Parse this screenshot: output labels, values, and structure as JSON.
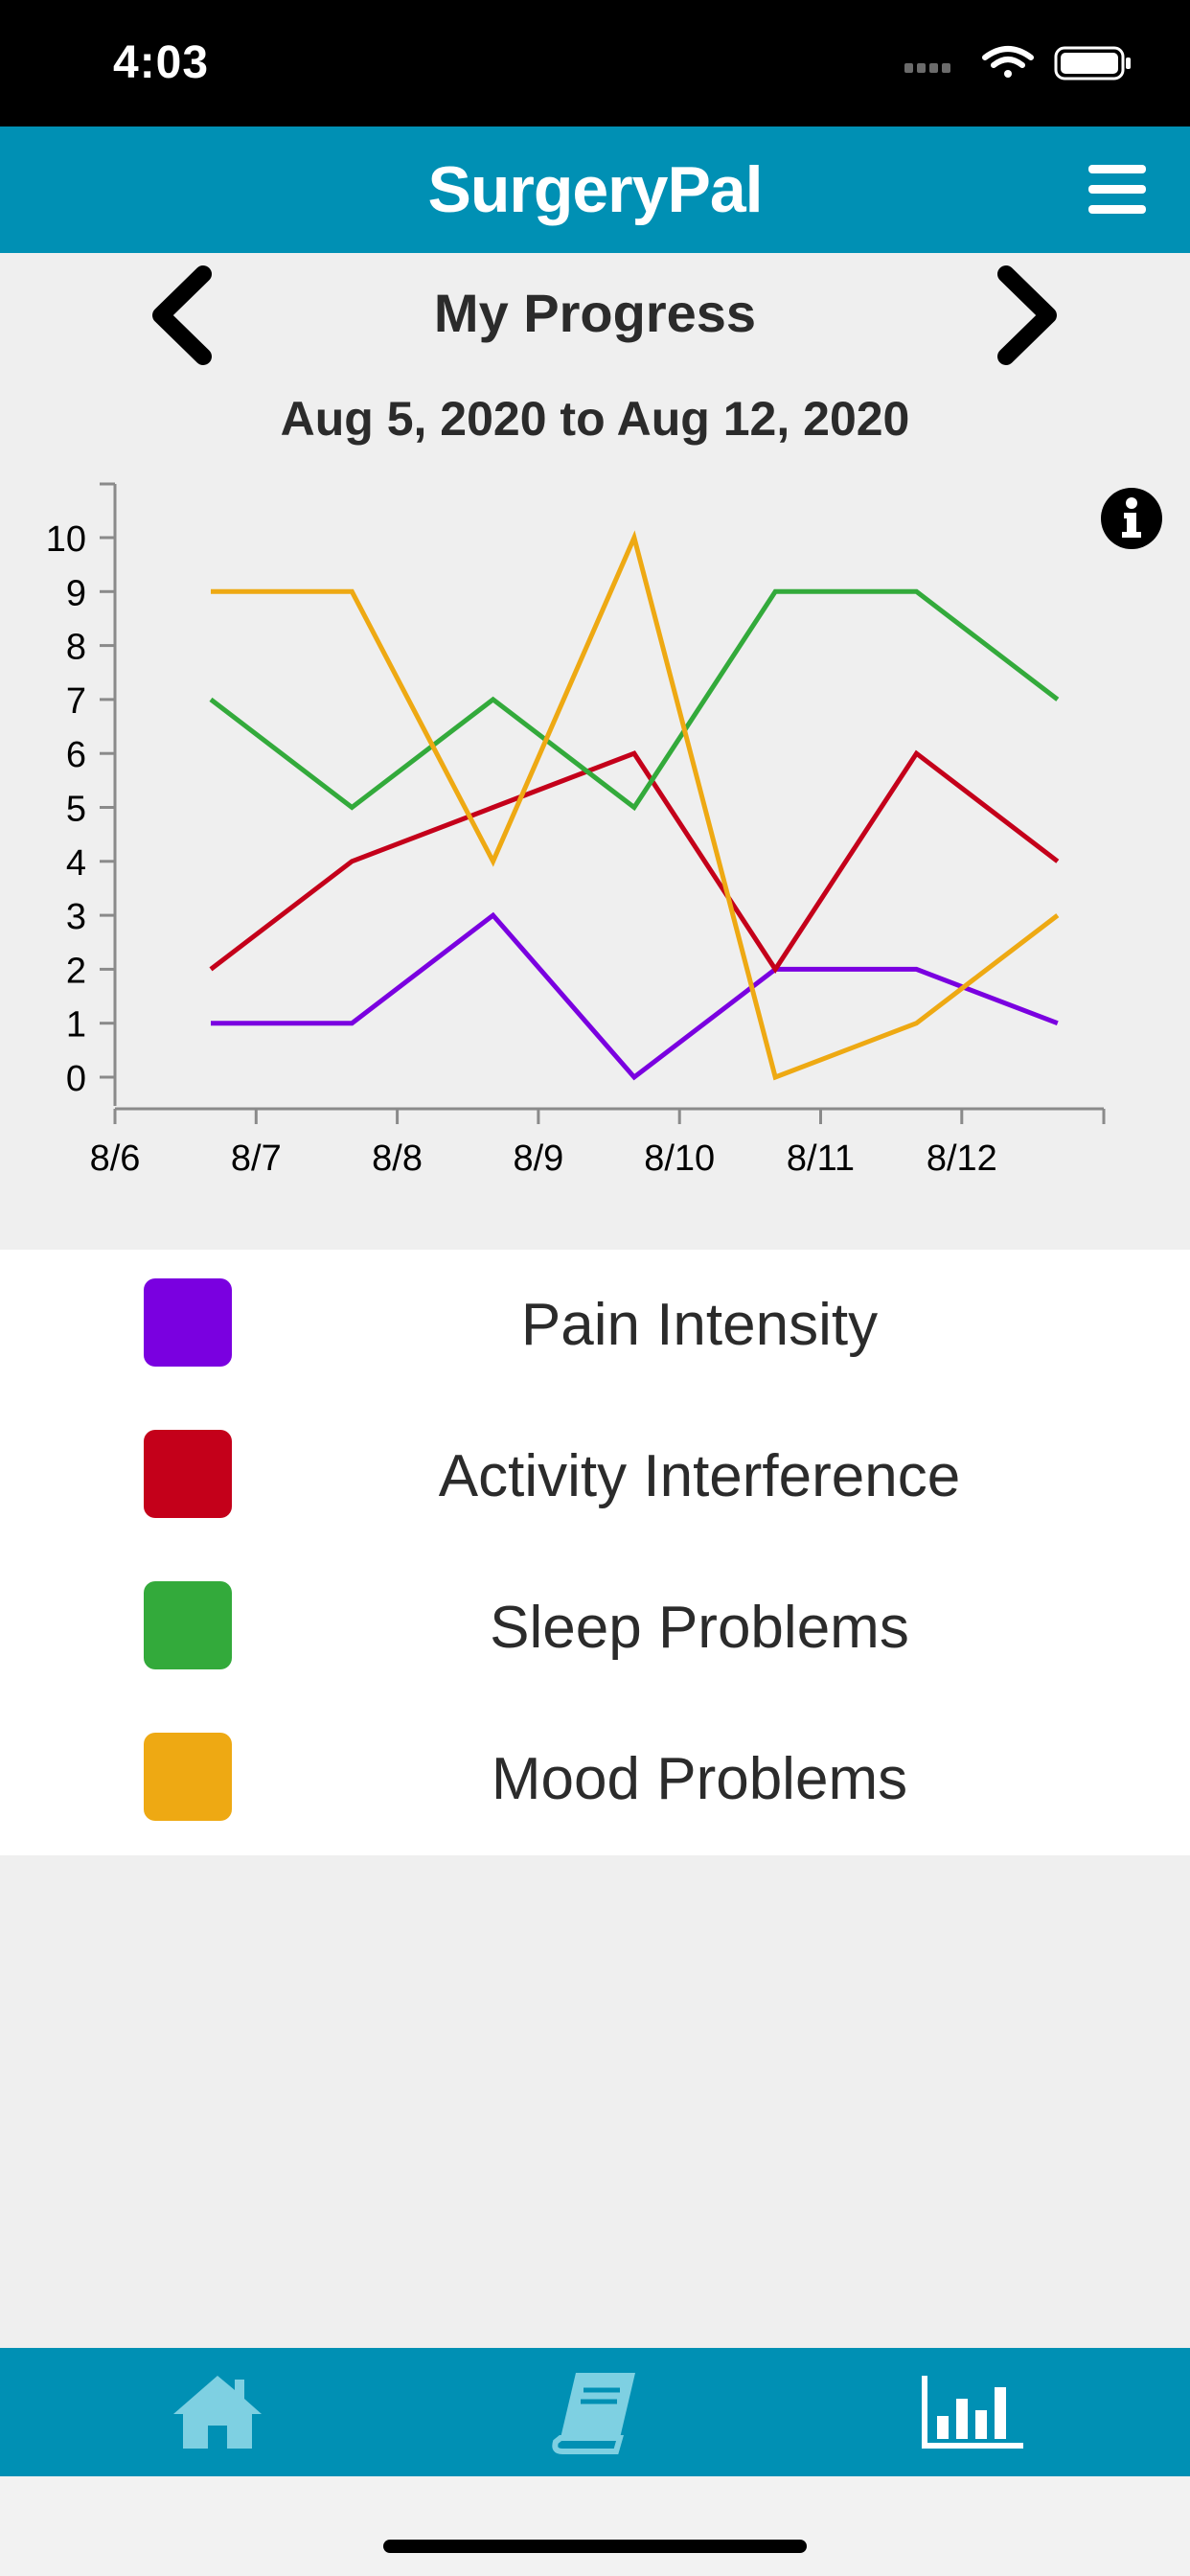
{
  "status_bar": {
    "time": "4:03"
  },
  "header": {
    "title": "SurgeryPal",
    "menu_icon": "hamburger-menu-icon"
  },
  "nav": {
    "title": "My Progress",
    "date_range": "Aug 5, 2020 to Aug 12, 2020",
    "prev_icon": "chevron-left-icon",
    "next_icon": "chevron-right-icon"
  },
  "chart_data": {
    "type": "line",
    "title": "",
    "xlabel": "",
    "ylabel": "",
    "x_ticks": [
      "8/6",
      "8/7",
      "8/8",
      "8/9",
      "8/10",
      "8/11",
      "8/12"
    ],
    "y_ticks": [
      0,
      1,
      2,
      3,
      4,
      5,
      6,
      7,
      8,
      9,
      10
    ],
    "ylim": [
      0,
      11
    ],
    "grid": false,
    "series": [
      {
        "name": "Pain Intensity",
        "color": "#7a00e0",
        "values": [
          1,
          1,
          3,
          0,
          2,
          2,
          1
        ]
      },
      {
        "name": "Activity Interference",
        "color": "#c4001a",
        "values": [
          2,
          4,
          5,
          6,
          2,
          6,
          4
        ]
      },
      {
        "name": "Sleep Problems",
        "color": "#33aa3b",
        "values": [
          7,
          5,
          7,
          5,
          9,
          9,
          7
        ]
      },
      {
        "name": "Mood Problems",
        "color": "#eea913",
        "values": [
          9,
          9,
          4,
          10,
          0,
          1,
          3
        ]
      }
    ]
  },
  "legend": {
    "items": [
      {
        "label": "Pain Intensity",
        "color": "#7a00e0"
      },
      {
        "label": "Activity Interference",
        "color": "#c4001a"
      },
      {
        "label": "Sleep Problems",
        "color": "#33aa3b"
      },
      {
        "label": "Mood Problems",
        "color": "#eea913"
      }
    ]
  },
  "tabs": [
    {
      "icon": "home-icon"
    },
    {
      "icon": "book-icon"
    },
    {
      "icon": "bar-chart-icon",
      "active": true
    }
  ],
  "colors": {
    "brand": "#0090b4",
    "tab_inactive": "#7ed0e2",
    "tab_active": "#ffffff"
  }
}
